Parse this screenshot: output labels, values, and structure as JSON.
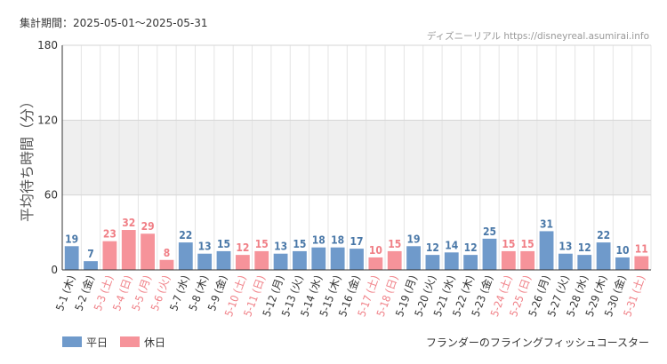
{
  "header": {
    "period": "集計期間：2025-05-01〜2025-05-31",
    "credit": "ディズニーリアル https://disneyreal.asumirai.info"
  },
  "attraction": "フランダーのフライングフィッシュコースター",
  "colors": {
    "weekday": "#6f9acb",
    "holiday": "#f6939a",
    "weekday_text": "#4a78a8",
    "holiday_text": "#f07f86",
    "band": "#efefef",
    "grid": "#e4e4e4"
  },
  "chart_data": {
    "type": "bar",
    "ylabel": "平均待ち時間（分）",
    "ylim": [
      0,
      180
    ],
    "yticks": [
      0,
      60,
      120,
      180
    ],
    "shaded_band": [
      60,
      120
    ],
    "grid": true,
    "legend_position": "bottom-left",
    "legend": [
      {
        "key": "weekday",
        "label": "平日"
      },
      {
        "key": "holiday",
        "label": "休日"
      }
    ],
    "categories": [
      "5-1 (木)",
      "5-2 (金)",
      "5-3 (土)",
      "5-4 (日)",
      "5-5 (月)",
      "5-6 (火)",
      "5-7 (水)",
      "5-8 (木)",
      "5-9 (金)",
      "5-10 (土)",
      "5-11 (日)",
      "5-12 (月)",
      "5-13 (火)",
      "5-14 (水)",
      "5-15 (木)",
      "5-16 (金)",
      "5-17 (土)",
      "5-18 (日)",
      "5-19 (月)",
      "5-20 (火)",
      "5-21 (水)",
      "5-22 (木)",
      "5-23 (金)",
      "5-24 (土)",
      "5-25 (日)",
      "5-26 (月)",
      "5-27 (火)",
      "5-28 (水)",
      "5-29 (木)",
      "5-30 (金)",
      "5-31 (土)"
    ],
    "values": [
      19,
      7,
      23,
      32,
      29,
      8,
      22,
      13,
      15,
      12,
      15,
      13,
      15,
      18,
      18,
      17,
      10,
      15,
      19,
      12,
      14,
      12,
      25,
      15,
      15,
      31,
      13,
      12,
      22,
      10,
      11
    ],
    "day_type": [
      "weekday",
      "weekday",
      "holiday",
      "holiday",
      "holiday",
      "holiday",
      "weekday",
      "weekday",
      "weekday",
      "holiday",
      "holiday",
      "weekday",
      "weekday",
      "weekday",
      "weekday",
      "weekday",
      "holiday",
      "holiday",
      "weekday",
      "weekday",
      "weekday",
      "weekday",
      "weekday",
      "holiday",
      "holiday",
      "weekday",
      "weekday",
      "weekday",
      "weekday",
      "weekday",
      "holiday"
    ]
  }
}
